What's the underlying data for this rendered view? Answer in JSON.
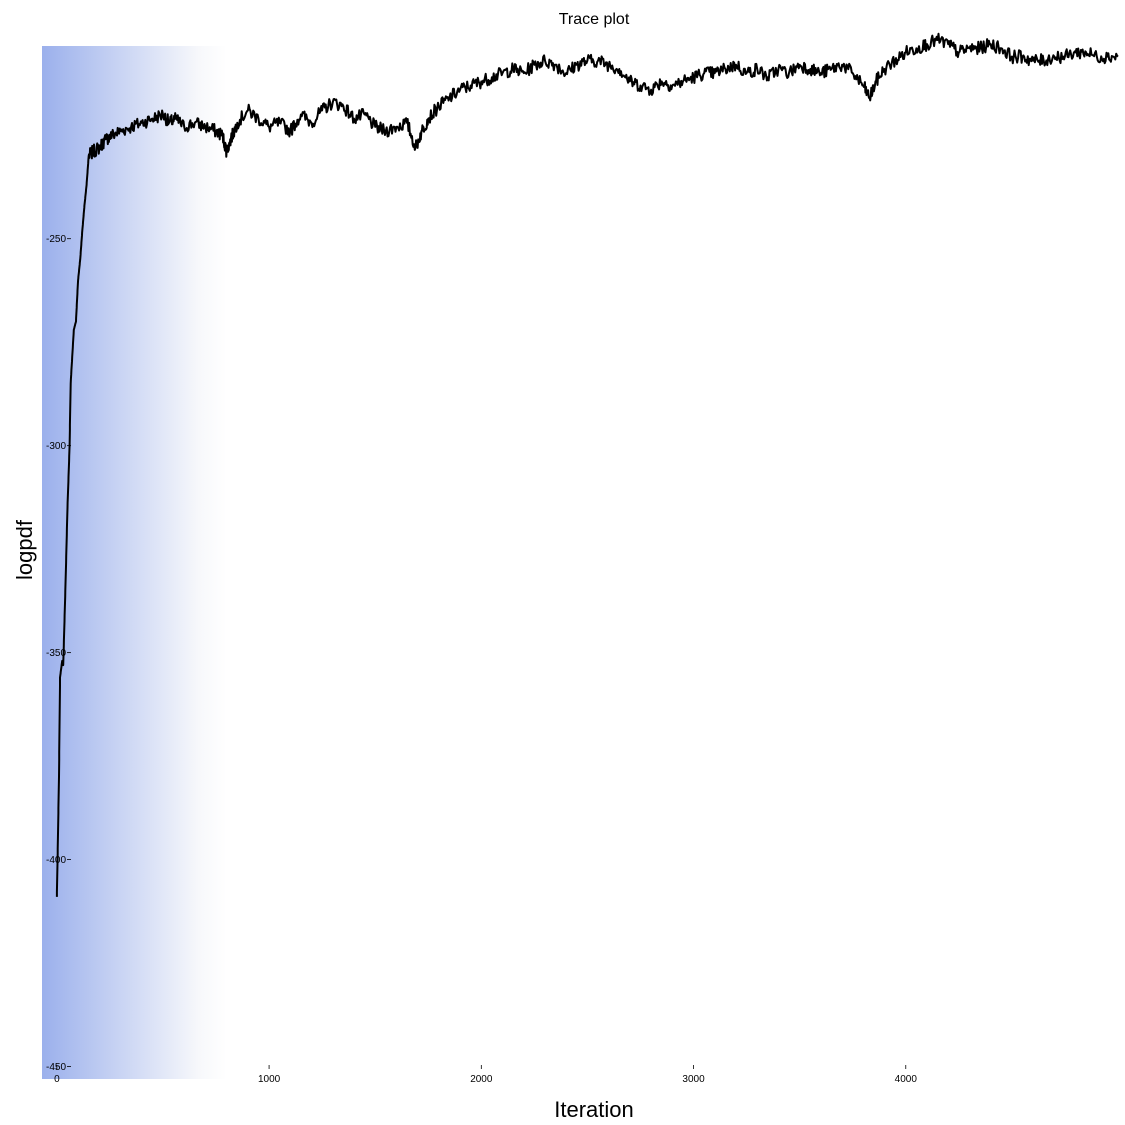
{
  "chart_data": {
    "type": "line",
    "title": "Trace plot",
    "xlabel": "Iteration",
    "ylabel": "logpdf",
    "xlim": [
      -70,
      5000
    ],
    "ylim": [
      -453,
      -202
    ],
    "x_ticks": [
      0,
      1000,
      2000,
      3000,
      4000
    ],
    "y_ticks": [
      -450,
      -400,
      -350,
      -300,
      -250
    ],
    "grid": false,
    "legend": "none",
    "burn_in_shading": {
      "x_end": 800,
      "color_start": "#9bb0ec",
      "color_end": "#ffffff"
    },
    "series": [
      {
        "color": "#000000",
        "points": [
          [
            0,
            -409
          ],
          [
            5,
            -395
          ],
          [
            10,
            -380
          ],
          [
            15,
            -356
          ],
          [
            25,
            -352
          ],
          [
            30,
            -353
          ],
          [
            40,
            -335
          ],
          [
            50,
            -315
          ],
          [
            60,
            -300
          ],
          [
            65,
            -285
          ],
          [
            80,
            -272
          ],
          [
            90,
            -270
          ],
          [
            100,
            -260
          ],
          [
            110,
            -255
          ],
          [
            120,
            -248
          ],
          [
            130,
            -242
          ],
          [
            140,
            -237
          ],
          [
            150,
            -230
          ],
          [
            170,
            -229
          ],
          [
            200,
            -228
          ],
          [
            230,
            -226
          ],
          [
            260,
            -225
          ],
          [
            300,
            -224
          ],
          [
            350,
            -223
          ],
          [
            400,
            -222
          ],
          [
            450,
            -221
          ],
          [
            500,
            -220
          ],
          [
            530,
            -222
          ],
          [
            560,
            -221
          ],
          [
            600,
            -223
          ],
          [
            650,
            -222
          ],
          [
            700,
            -223
          ],
          [
            750,
            -224
          ],
          [
            780,
            -225
          ],
          [
            800,
            -229
          ],
          [
            820,
            -226
          ],
          [
            850,
            -222
          ],
          [
            900,
            -219
          ],
          [
            950,
            -221
          ],
          [
            1000,
            -223
          ],
          [
            1050,
            -222
          ],
          [
            1100,
            -224
          ],
          [
            1150,
            -220
          ],
          [
            1200,
            -222
          ],
          [
            1250,
            -219
          ],
          [
            1300,
            -217
          ],
          [
            1350,
            -218
          ],
          [
            1400,
            -221
          ],
          [
            1450,
            -220
          ],
          [
            1500,
            -223
          ],
          [
            1550,
            -224
          ],
          [
            1600,
            -223
          ],
          [
            1650,
            -222
          ],
          [
            1690,
            -228
          ],
          [
            1720,
            -224
          ],
          [
            1750,
            -221
          ],
          [
            1800,
            -218
          ],
          [
            1850,
            -216
          ],
          [
            1900,
            -214
          ],
          [
            1950,
            -213
          ],
          [
            2000,
            -212
          ],
          [
            2050,
            -211
          ],
          [
            2100,
            -210
          ],
          [
            2150,
            -209
          ],
          [
            2200,
            -210
          ],
          [
            2250,
            -208
          ],
          [
            2300,
            -207
          ],
          [
            2350,
            -208
          ],
          [
            2400,
            -210
          ],
          [
            2450,
            -208
          ],
          [
            2500,
            -207
          ],
          [
            2550,
            -207
          ],
          [
            2600,
            -208
          ],
          [
            2650,
            -209
          ],
          [
            2700,
            -212
          ],
          [
            2750,
            -213
          ],
          [
            2800,
            -214
          ],
          [
            2850,
            -212
          ],
          [
            2900,
            -213
          ],
          [
            2950,
            -212
          ],
          [
            3000,
            -211
          ],
          [
            3050,
            -210
          ],
          [
            3100,
            -210
          ],
          [
            3150,
            -209
          ],
          [
            3200,
            -208
          ],
          [
            3250,
            -210
          ],
          [
            3300,
            -209
          ],
          [
            3350,
            -211
          ],
          [
            3400,
            -209
          ],
          [
            3450,
            -210
          ],
          [
            3500,
            -208
          ],
          [
            3550,
            -209
          ],
          [
            3600,
            -210
          ],
          [
            3650,
            -209
          ],
          [
            3700,
            -208
          ],
          [
            3750,
            -210
          ],
          [
            3800,
            -213
          ],
          [
            3830,
            -216
          ],
          [
            3860,
            -212
          ],
          [
            3900,
            -209
          ],
          [
            3950,
            -207
          ],
          [
            4000,
            -205
          ],
          [
            4050,
            -204
          ],
          [
            4100,
            -203
          ],
          [
            4150,
            -202
          ],
          [
            4200,
            -203
          ],
          [
            4250,
            -205
          ],
          [
            4300,
            -204
          ],
          [
            4350,
            -204
          ],
          [
            4400,
            -203
          ],
          [
            4450,
            -204
          ],
          [
            4500,
            -206
          ],
          [
            4550,
            -206
          ],
          [
            4600,
            -207
          ],
          [
            4650,
            -207
          ],
          [
            4700,
            -206
          ],
          [
            4750,
            -206
          ],
          [
            4800,
            -205
          ],
          [
            4850,
            -205
          ],
          [
            4900,
            -206
          ],
          [
            4950,
            -206
          ],
          [
            5000,
            -206
          ]
        ]
      }
    ]
  }
}
